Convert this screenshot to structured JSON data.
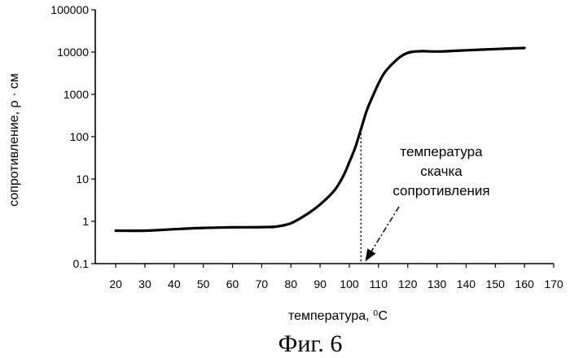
{
  "chart_data": {
    "type": "line",
    "title": "",
    "xlabel": "температура, ⁰C",
    "ylabel": "сопротивление, ρ · см",
    "yscale": "log",
    "xlim": [
      13,
      170
    ],
    "ylim": [
      0.1,
      100000
    ],
    "x_ticks": [
      20,
      30,
      40,
      50,
      60,
      70,
      80,
      90,
      100,
      110,
      120,
      130,
      140,
      150,
      160,
      170
    ],
    "x_tick_labels": [
      "20",
      "30",
      "40",
      "50",
      "60",
      "70",
      "80",
      "90",
      "100",
      "110",
      "120",
      "130",
      "140",
      "150",
      "160",
      "170"
    ],
    "y_ticks": [
      0.1,
      1,
      10,
      100,
      1000,
      10000,
      100000
    ],
    "y_tick_labels": [
      "0.1",
      "1",
      "10",
      "100",
      "1000",
      "10000",
      "100000"
    ],
    "grid": false,
    "series": [
      {
        "name": "сопротивление",
        "x": [
          20,
          30,
          40,
          50,
          60,
          70,
          75,
          80,
          85,
          90,
          95,
          98,
          100,
          102,
          104,
          106,
          108,
          110,
          112,
          115,
          118,
          121,
          125,
          130,
          140,
          150,
          160
        ],
        "y": [
          0.6,
          0.6,
          0.65,
          0.7,
          0.72,
          0.73,
          0.75,
          0.9,
          1.4,
          2.5,
          5.5,
          12,
          25,
          55,
          150,
          420,
          900,
          1800,
          3200,
          5500,
          8200,
          10000,
          10500,
          10300,
          11000,
          11800,
          12500
        ]
      }
    ],
    "annotations": [
      {
        "text_lines": [
          "температура",
          "скачка",
          "сопротивления"
        ],
        "target_x": 104,
        "target_y": 0.1
      }
    ],
    "marker": {
      "x": 104
    },
    "caption": "Фиг. 6"
  }
}
